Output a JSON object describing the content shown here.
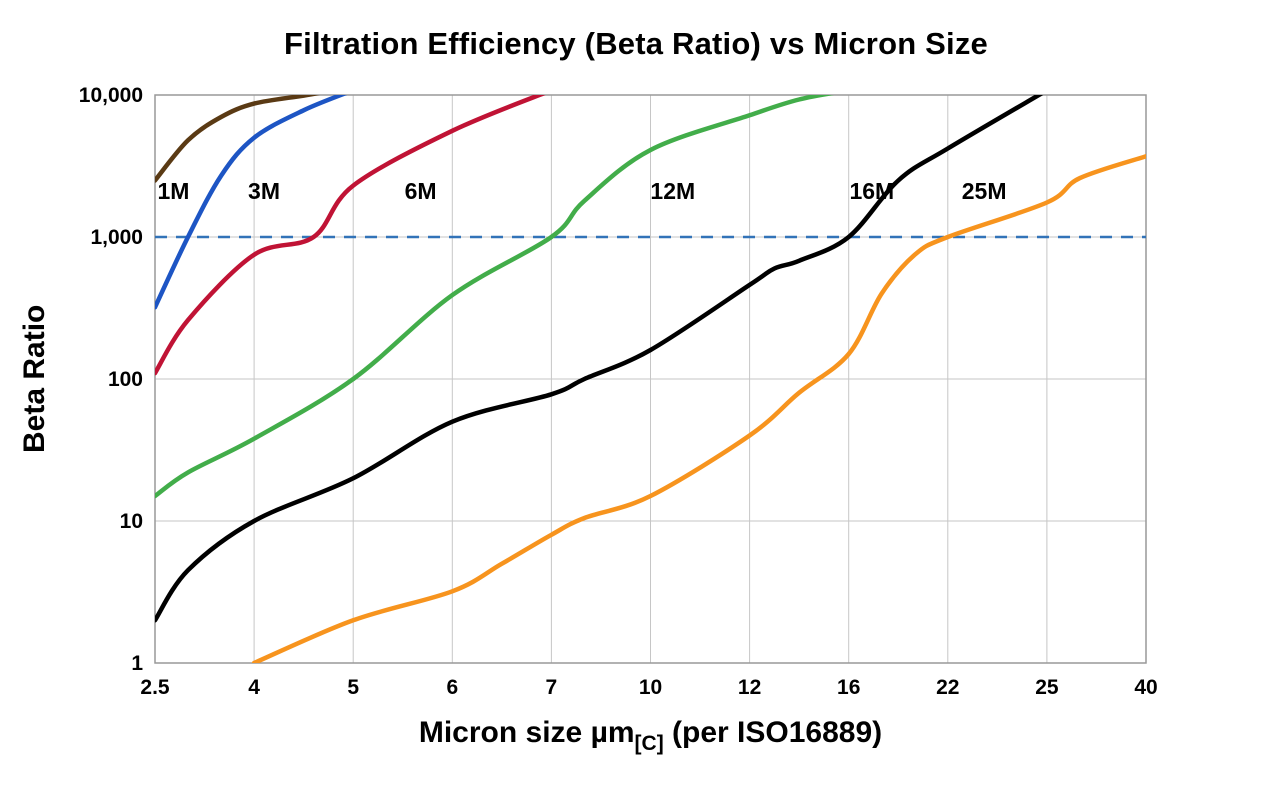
{
  "page": {
    "background": "#ffffff"
  },
  "chart_data": {
    "type": "line",
    "title": "Filtration Efficiency (Beta Ratio) vs Micron Size",
    "ylabel": "Beta Ratio",
    "xlabel_pre": "Micron size µm",
    "xlabel_sub": "[C]",
    "xlabel_post": " (per ISO16889)",
    "x_scale": "ordinal",
    "x_ticks": [
      2.5,
      4,
      5,
      6,
      7,
      10,
      12,
      16,
      22,
      25,
      40
    ],
    "x_tick_labels": [
      "2.5",
      "4",
      "5",
      "6",
      "7",
      "10",
      "12",
      "16",
      "22",
      "25",
      "40"
    ],
    "y_scale": "log",
    "y_range": [
      1,
      10000
    ],
    "y_ticks": [
      1,
      10,
      100,
      1000,
      10000
    ],
    "y_tick_labels": [
      "1",
      "10",
      "100",
      "1,000",
      "10,000"
    ],
    "grid": true,
    "grid_color": "#c6c6c6",
    "border_color": "#999999",
    "legend_position": "inline-labels",
    "reference_line": {
      "y": 1000,
      "color": "#3273b8",
      "dash": "12 9",
      "width": 2.5
    },
    "series": [
      {
        "name": "1M",
        "color": "#5a3a14",
        "label_x": 2.78,
        "label_y": 2100,
        "points": [
          [
            2.5,
            2500
          ],
          [
            3,
            4800
          ],
          [
            3.5,
            7000
          ],
          [
            4,
            8700
          ],
          [
            4.5,
            9900
          ],
          [
            4.8,
            10800
          ]
        ]
      },
      {
        "name": "3M",
        "color": "#1d55c4",
        "label_x": 4.1,
        "label_y": 2100,
        "points": [
          [
            2.5,
            320
          ],
          [
            3,
            1000
          ],
          [
            3.5,
            2700
          ],
          [
            4,
            5000
          ],
          [
            4.5,
            7800
          ],
          [
            5,
            10800
          ]
        ]
      },
      {
        "name": "6M",
        "color": "#c01335",
        "label_x": 5.68,
        "label_y": 2100,
        "points": [
          [
            2.5,
            110
          ],
          [
            3,
            260
          ],
          [
            4,
            750
          ],
          [
            4.6,
            1000
          ],
          [
            5,
            2300
          ],
          [
            6,
            5600
          ],
          [
            7,
            10800
          ]
        ]
      },
      {
        "name": "12M",
        "color": "#42ad4a",
        "label_x": 10.45,
        "label_y": 2100,
        "points": [
          [
            2.5,
            15
          ],
          [
            3,
            22
          ],
          [
            4,
            38
          ],
          [
            5,
            100
          ],
          [
            6,
            390
          ],
          [
            7,
            1000
          ],
          [
            8,
            1800
          ],
          [
            10,
            4100
          ],
          [
            12,
            7200
          ],
          [
            14,
            9300
          ],
          [
            16,
            10800
          ]
        ]
      },
      {
        "name": "16M",
        "color": "#000000",
        "label_x": 17.4,
        "label_y": 2100,
        "points": [
          [
            2.5,
            2
          ],
          [
            3,
            4.5
          ],
          [
            4,
            10
          ],
          [
            5,
            20
          ],
          [
            6,
            50
          ],
          [
            7,
            78
          ],
          [
            8,
            100
          ],
          [
            10,
            160
          ],
          [
            12,
            460
          ],
          [
            13,
            600
          ],
          [
            14,
            680
          ],
          [
            16,
            1000
          ],
          [
            19,
            2500
          ],
          [
            22,
            4200
          ],
          [
            25,
            10800
          ]
        ]
      },
      {
        "name": "25M",
        "color": "#f7941e",
        "label_x": 23.1,
        "label_y": 2100,
        "points": [
          [
            4,
            1
          ],
          [
            5,
            2
          ],
          [
            6,
            3.2
          ],
          [
            6.5,
            5
          ],
          [
            7,
            8
          ],
          [
            8,
            10.5
          ],
          [
            10,
            15
          ],
          [
            12,
            40
          ],
          [
            14,
            80
          ],
          [
            16,
            150
          ],
          [
            18,
            400
          ],
          [
            20,
            750
          ],
          [
            22,
            1000
          ],
          [
            25,
            1750
          ],
          [
            30,
            2600
          ],
          [
            40,
            3700
          ]
        ]
      }
    ]
  }
}
